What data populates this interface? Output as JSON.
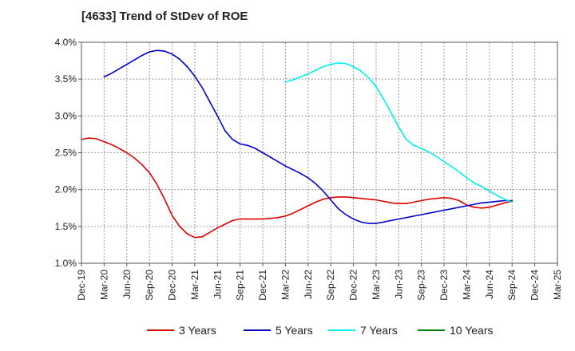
{
  "chart_data": {
    "type": "line",
    "title": "[4633]  Trend of StDev of ROE",
    "xlabel": "",
    "ylabel": "",
    "ylim": [
      0.01,
      0.04
    ],
    "y_ticks": [
      0.01,
      0.015,
      0.02,
      0.025,
      0.03,
      0.035,
      0.04
    ],
    "y_tick_labels": [
      "1.0%",
      "1.5%",
      "2.0%",
      "2.5%",
      "3.0%",
      "3.5%",
      "4.0%"
    ],
    "x_tick_labels": [
      "Dec-19",
      "Mar-20",
      "Jun-20",
      "Sep-20",
      "Dec-20",
      "Mar-21",
      "Jun-21",
      "Sep-21",
      "Dec-21",
      "Mar-22",
      "Jun-22",
      "Sep-22",
      "Dec-22",
      "Mar-23",
      "Jun-23",
      "Sep-23",
      "Dec-23",
      "Mar-24",
      "Jun-24",
      "Sep-24",
      "Dec-24",
      "Mar-25"
    ],
    "grid": true,
    "legend_position": "bottom",
    "series": [
      {
        "name": "3 Years",
        "color": "#dd0000",
        "points": [
          [
            "Dec-19",
            0.0268
          ],
          [
            "Jan-20",
            0.027
          ],
          [
            "Feb-20",
            0.0269
          ],
          [
            "Mar-20",
            0.0265
          ],
          [
            "Apr-20",
            0.0261
          ],
          [
            "May-20",
            0.0256
          ],
          [
            "Jun-20",
            0.025
          ],
          [
            "Jul-20",
            0.0243
          ],
          [
            "Aug-20",
            0.0234
          ],
          [
            "Sep-20",
            0.0223
          ],
          [
            "Oct-20",
            0.0207
          ],
          [
            "Nov-20",
            0.0187
          ],
          [
            "Dec-20",
            0.0165
          ],
          [
            "Jan-21",
            0.015
          ],
          [
            "Feb-21",
            0.014
          ],
          [
            "Mar-21",
            0.0135
          ],
          [
            "Apr-21",
            0.0136
          ],
          [
            "May-21",
            0.0142
          ],
          [
            "Jun-21",
            0.0148
          ],
          [
            "Jul-21",
            0.0153
          ],
          [
            "Aug-21",
            0.0158
          ],
          [
            "Sep-21",
            0.016
          ],
          [
            "Oct-21",
            0.016
          ],
          [
            "Nov-21",
            0.016
          ],
          [
            "Dec-21",
            0.016
          ],
          [
            "Jan-22",
            0.0161
          ],
          [
            "Feb-22",
            0.0162
          ],
          [
            "Mar-22",
            0.0164
          ],
          [
            "Apr-22",
            0.0168
          ],
          [
            "May-22",
            0.0173
          ],
          [
            "Jun-22",
            0.0178
          ],
          [
            "Jul-22",
            0.0183
          ],
          [
            "Aug-22",
            0.0187
          ],
          [
            "Sep-22",
            0.0189
          ],
          [
            "Oct-22",
            0.019
          ],
          [
            "Nov-22",
            0.019
          ],
          [
            "Dec-22",
            0.0189
          ],
          [
            "Jan-23",
            0.0188
          ],
          [
            "Feb-23",
            0.0187
          ],
          [
            "Mar-23",
            0.0186
          ],
          [
            "Apr-23",
            0.0184
          ],
          [
            "May-23",
            0.0182
          ],
          [
            "Jun-23",
            0.0181
          ],
          [
            "Jul-23",
            0.0181
          ],
          [
            "Aug-23",
            0.0183
          ],
          [
            "Sep-23",
            0.0185
          ],
          [
            "Oct-23",
            0.0187
          ],
          [
            "Nov-23",
            0.0188
          ],
          [
            "Dec-23",
            0.0189
          ],
          [
            "Jan-24",
            0.0188
          ],
          [
            "Feb-24",
            0.0185
          ],
          [
            "Mar-24",
            0.0179
          ],
          [
            "Apr-24",
            0.0176
          ],
          [
            "May-24",
            0.0175
          ],
          [
            "Jun-24",
            0.0176
          ],
          [
            "Jul-24",
            0.0179
          ],
          [
            "Aug-24",
            0.0182
          ],
          [
            "Sep-24",
            0.0184
          ]
        ]
      },
      {
        "name": "5 Years",
        "color": "#0000cc",
        "points": [
          [
            "Mar-20",
            0.0353
          ],
          [
            "Apr-20",
            0.0358
          ],
          [
            "May-20",
            0.0364
          ],
          [
            "Jun-20",
            0.037
          ],
          [
            "Jul-20",
            0.0376
          ],
          [
            "Aug-20",
            0.0382
          ],
          [
            "Sep-20",
            0.0387
          ],
          [
            "Oct-20",
            0.0389
          ],
          [
            "Nov-20",
            0.0388
          ],
          [
            "Dec-20",
            0.0384
          ],
          [
            "Jan-21",
            0.0377
          ],
          [
            "Feb-21",
            0.0367
          ],
          [
            "Mar-21",
            0.0354
          ],
          [
            "Apr-21",
            0.0338
          ],
          [
            "May-21",
            0.0319
          ],
          [
            "Jun-21",
            0.03
          ],
          [
            "Jul-21",
            0.028
          ],
          [
            "Aug-21",
            0.0268
          ],
          [
            "Sep-21",
            0.0262
          ],
          [
            "Oct-21",
            0.026
          ],
          [
            "Nov-21",
            0.0256
          ],
          [
            "Dec-21",
            0.025
          ],
          [
            "Jan-22",
            0.0244
          ],
          [
            "Feb-22",
            0.0238
          ],
          [
            "Mar-22",
            0.0232
          ],
          [
            "Apr-22",
            0.0227
          ],
          [
            "May-22",
            0.0222
          ],
          [
            "Jun-22",
            0.0216
          ],
          [
            "Jul-22",
            0.0208
          ],
          [
            "Aug-22",
            0.0198
          ],
          [
            "Sep-22",
            0.0186
          ],
          [
            "Oct-22",
            0.0174
          ],
          [
            "Nov-22",
            0.0166
          ],
          [
            "Dec-22",
            0.016
          ],
          [
            "Jan-23",
            0.0156
          ],
          [
            "Feb-23",
            0.0154
          ],
          [
            "Mar-23",
            0.0154
          ],
          [
            "Apr-23",
            0.0156
          ],
          [
            "May-23",
            0.0158
          ],
          [
            "Jun-23",
            0.016
          ],
          [
            "Jul-23",
            0.0162
          ],
          [
            "Aug-23",
            0.0164
          ],
          [
            "Sep-23",
            0.0166
          ],
          [
            "Oct-23",
            0.0168
          ],
          [
            "Nov-23",
            0.017
          ],
          [
            "Dec-23",
            0.0172
          ],
          [
            "Jan-24",
            0.0174
          ],
          [
            "Feb-24",
            0.0176
          ],
          [
            "Mar-24",
            0.0178
          ],
          [
            "Apr-24",
            0.018
          ],
          [
            "May-24",
            0.0182
          ],
          [
            "Jun-24",
            0.0183
          ],
          [
            "Jul-24",
            0.0184
          ],
          [
            "Aug-24",
            0.0185
          ],
          [
            "Sep-24",
            0.0185
          ]
        ]
      },
      {
        "name": "7 Years",
        "color": "#00eeee",
        "points": [
          [
            "Mar-22",
            0.0346
          ],
          [
            "Apr-22",
            0.0349
          ],
          [
            "May-22",
            0.0353
          ],
          [
            "Jun-22",
            0.0357
          ],
          [
            "Jul-22",
            0.0362
          ],
          [
            "Aug-22",
            0.0367
          ],
          [
            "Sep-22",
            0.037
          ],
          [
            "Oct-22",
            0.0372
          ],
          [
            "Nov-22",
            0.0371
          ],
          [
            "Dec-22",
            0.0367
          ],
          [
            "Jan-23",
            0.0361
          ],
          [
            "Feb-23",
            0.0352
          ],
          [
            "Mar-23",
            0.034
          ],
          [
            "Apr-23",
            0.0323
          ],
          [
            "May-23",
            0.0304
          ],
          [
            "Jun-23",
            0.0285
          ],
          [
            "Jul-23",
            0.0268
          ],
          [
            "Aug-23",
            0.026
          ],
          [
            "Sep-23",
            0.0256
          ],
          [
            "Oct-23",
            0.0251
          ],
          [
            "Nov-23",
            0.0245
          ],
          [
            "Dec-23",
            0.0238
          ],
          [
            "Jan-24",
            0.0231
          ],
          [
            "Feb-24",
            0.0224
          ],
          [
            "Mar-24",
            0.0216
          ],
          [
            "Apr-24",
            0.0209
          ],
          [
            "May-24",
            0.0204
          ],
          [
            "Jun-24",
            0.0198
          ],
          [
            "Jul-24",
            0.0192
          ],
          [
            "Aug-24",
            0.0187
          ],
          [
            "Sep-24",
            0.0183
          ]
        ]
      },
      {
        "name": "10 Years",
        "color": "#008000",
        "points": []
      }
    ]
  }
}
